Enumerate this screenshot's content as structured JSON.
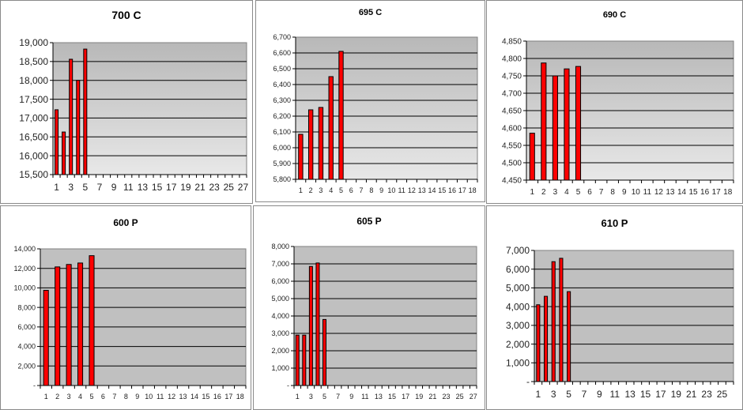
{
  "chart_data": [
    {
      "type": "bar",
      "title": "700 C",
      "categories_count": 27,
      "label_step": 2,
      "x_values": [
        1,
        2,
        3,
        4,
        5
      ],
      "values": [
        17220,
        16630,
        18560,
        18000,
        18830
      ],
      "ylim": [
        15500,
        19000
      ],
      "ytick_step": 500,
      "ytick_labels": [
        "15,500",
        "16,000",
        "16,500",
        "17,000",
        "17,500",
        "18,000",
        "18,500",
        "19,000"
      ],
      "grid": true,
      "bar_color": "#ff0000"
    },
    {
      "type": "bar",
      "title": "695 C",
      "categories_count": 18,
      "label_step": 1,
      "x_values": [
        1,
        2,
        3,
        4,
        5
      ],
      "values": [
        6085,
        6240,
        6255,
        6450,
        6610
      ],
      "ylim": [
        5800,
        6700
      ],
      "ytick_step": 100,
      "ytick_labels": [
        "5,800",
        "5,900",
        "6,000",
        "6,100",
        "6,200",
        "6,300",
        "6,400",
        "6,500",
        "6,600",
        "6,700"
      ],
      "grid": true,
      "bar_color": "#ff0000"
    },
    {
      "type": "bar",
      "title": "690 C",
      "categories_count": 18,
      "label_step": 1,
      "x_values": [
        1,
        2,
        3,
        4,
        5
      ],
      "values": [
        4585,
        4787,
        4750,
        4770,
        4777
      ],
      "ylim": [
        4450,
        4850
      ],
      "ytick_step": 50,
      "ytick_labels": [
        "4,450",
        "4,500",
        "4,550",
        "4,600",
        "4,650",
        "4,700",
        "4,750",
        "4,800",
        "4,850"
      ],
      "grid": true,
      "bar_color": "#ff0000"
    },
    {
      "type": "bar",
      "title": "600 P",
      "categories_count": 18,
      "label_step": 1,
      "x_values": [
        1,
        2,
        3,
        4,
        5
      ],
      "values": [
        9750,
        12150,
        12400,
        12550,
        13300
      ],
      "ylim": [
        0,
        14000
      ],
      "ytick_step": 2000,
      "ytick_labels": [
        "-",
        "2,000",
        "4,000",
        "6,000",
        "8,000",
        "10,000",
        "12,000",
        "14,000"
      ],
      "grid": true,
      "bar_color": "#ff0000"
    },
    {
      "type": "bar",
      "title": "605 P",
      "categories_count": 27,
      "label_step": 2,
      "x_values": [
        1,
        2,
        3,
        4,
        5
      ],
      "values": [
        2900,
        2900,
        6850,
        7050,
        3800
      ],
      "ylim": [
        0,
        8000
      ],
      "ytick_step": 1000,
      "ytick_labels": [
        "-",
        "1,000",
        "2,000",
        "3,000",
        "4,000",
        "5,000",
        "6,000",
        "7,000",
        "8,000"
      ],
      "grid": true,
      "bar_color": "#ff0000"
    },
    {
      "type": "bar",
      "title": "610 P",
      "categories_count": 26,
      "label_step": 2,
      "x_values": [
        1,
        2,
        3,
        4,
        5
      ],
      "values": [
        4100,
        4550,
        6400,
        6580,
        4800
      ],
      "ylim": [
        0,
        7000
      ],
      "ytick_step": 1000,
      "ytick_labels": [
        "-",
        "1,000",
        "2,000",
        "3,000",
        "4,000",
        "5,000",
        "6,000",
        "7,000"
      ],
      "grid": true,
      "bar_color": "#ff0000"
    }
  ]
}
